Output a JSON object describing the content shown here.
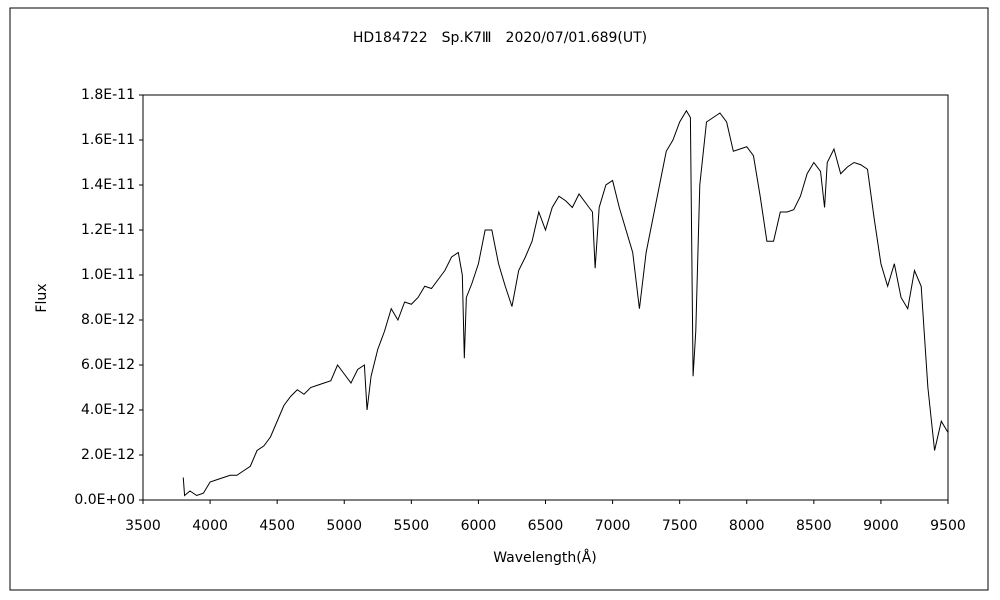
{
  "chart_data": {
    "type": "line",
    "title": "HD184722　Sp.K7Ⅲ　2020/07/01.689(UT)",
    "x_label": "Wavelength(Å)",
    "y_label": "Flux",
    "color": "#000000",
    "x": [
      3800,
      3810,
      3850,
      3900,
      3950,
      4000,
      4050,
      4100,
      4150,
      4200,
      4250,
      4300,
      4350,
      4400,
      4450,
      4500,
      4550,
      4600,
      4650,
      4700,
      4750,
      4800,
      4850,
      4900,
      4950,
      5000,
      5050,
      5100,
      5150,
      5170,
      5200,
      5250,
      5300,
      5350,
      5400,
      5450,
      5500,
      5550,
      5600,
      5650,
      5700,
      5750,
      5800,
      5850,
      5880,
      5895,
      5910,
      5950,
      6000,
      6050,
      6100,
      6150,
      6200,
      6250,
      6300,
      6350,
      6400,
      6450,
      6500,
      6550,
      6600,
      6650,
      6700,
      6750,
      6800,
      6850,
      6870,
      6900,
      6950,
      7000,
      7050,
      7100,
      7150,
      7200,
      7250,
      7300,
      7350,
      7400,
      7450,
      7500,
      7550,
      7580,
      7600,
      7620,
      7650,
      7700,
      7750,
      7800,
      7850,
      7900,
      7950,
      8000,
      8050,
      8100,
      8150,
      8200,
      8250,
      8300,
      8350,
      8400,
      8450,
      8500,
      8550,
      8580,
      8600,
      8650,
      8700,
      8750,
      8800,
      8850,
      8900,
      8950,
      9000,
      9050,
      9100,
      9150,
      9200,
      9250,
      9300,
      9350,
      9400,
      9450,
      9500
    ],
    "values": [
      1e-12,
      2e-13,
      4e-13,
      2e-13,
      3e-13,
      8e-13,
      9e-13,
      1e-12,
      1.1e-12,
      1.1e-12,
      1.3e-12,
      1.5e-12,
      2.2e-12,
      2.4e-12,
      2.8e-12,
      3.5e-12,
      4.2e-12,
      4.6e-12,
      4.9e-12,
      4.7e-12,
      5e-12,
      5.1e-12,
      5.2e-12,
      5.3e-12,
      6e-12,
      5.6e-12,
      5.2e-12,
      5.8e-12,
      6e-12,
      4e-12,
      5.5e-12,
      6.7e-12,
      7.5e-12,
      8.5e-12,
      8e-12,
      8.8e-12,
      8.7e-12,
      9e-12,
      9.5e-12,
      9.4e-12,
      9.8e-12,
      1.02e-11,
      1.08e-11,
      1.1e-11,
      1e-11,
      6.3e-12,
      9e-12,
      9.6e-12,
      1.05e-11,
      1.2e-11,
      1.2e-11,
      1.05e-11,
      9.5e-12,
      8.6e-12,
      1.02e-11,
      1.08e-11,
      1.15e-11,
      1.28e-11,
      1.2e-11,
      1.3e-11,
      1.35e-11,
      1.33e-11,
      1.3e-11,
      1.36e-11,
      1.32e-11,
      1.28e-11,
      1.03e-11,
      1.3e-11,
      1.4e-11,
      1.42e-11,
      1.3e-11,
      1.2e-11,
      1.1e-11,
      8.5e-12,
      1.1e-11,
      1.25e-11,
      1.4e-11,
      1.55e-11,
      1.6e-11,
      1.68e-11,
      1.73e-11,
      1.7e-11,
      5.5e-12,
      7.5e-12,
      1.4e-11,
      1.68e-11,
      1.7e-11,
      1.72e-11,
      1.68e-11,
      1.55e-11,
      1.56e-11,
      1.57e-11,
      1.53e-11,
      1.35e-11,
      1.15e-11,
      1.15e-11,
      1.28e-11,
      1.28e-11,
      1.29e-11,
      1.35e-11,
      1.45e-11,
      1.5e-11,
      1.46e-11,
      1.3e-11,
      1.5e-11,
      1.56e-11,
      1.45e-11,
      1.48e-11,
      1.5e-11,
      1.49e-11,
      1.47e-11,
      1.25e-11,
      1.05e-11,
      9.5e-12,
      1.05e-11,
      9e-12,
      8.5e-12,
      1.02e-11,
      9.5e-12,
      5e-12,
      2.2e-12,
      3.5e-12,
      3e-12
    ],
    "xlim": [
      3500,
      9500
    ],
    "xticks": [
      3500,
      4000,
      4500,
      5000,
      5500,
      6000,
      6500,
      7000,
      7500,
      8000,
      8500,
      9000,
      9500
    ],
    "ylim": [
      0,
      1.8e-11
    ],
    "yticks": [
      {
        "value": 0,
        "label": "0.0E+00"
      },
      {
        "value": 2e-12,
        "label": "2.0E-12"
      },
      {
        "value": 4e-12,
        "label": "4.0E-12"
      },
      {
        "value": 6e-12,
        "label": "6.0E-12"
      },
      {
        "value": 8e-12,
        "label": "8.0E-12"
      },
      {
        "value": 1e-11,
        "label": "1.0E-11"
      },
      {
        "value": 1.2e-11,
        "label": "1.2E-11"
      },
      {
        "value": 1.4e-11,
        "label": "1.4E-11"
      },
      {
        "value": 1.6e-11,
        "label": "1.6E-11"
      },
      {
        "value": 1.8e-11,
        "label": "1.8E-11"
      }
    ],
    "grid": false
  }
}
